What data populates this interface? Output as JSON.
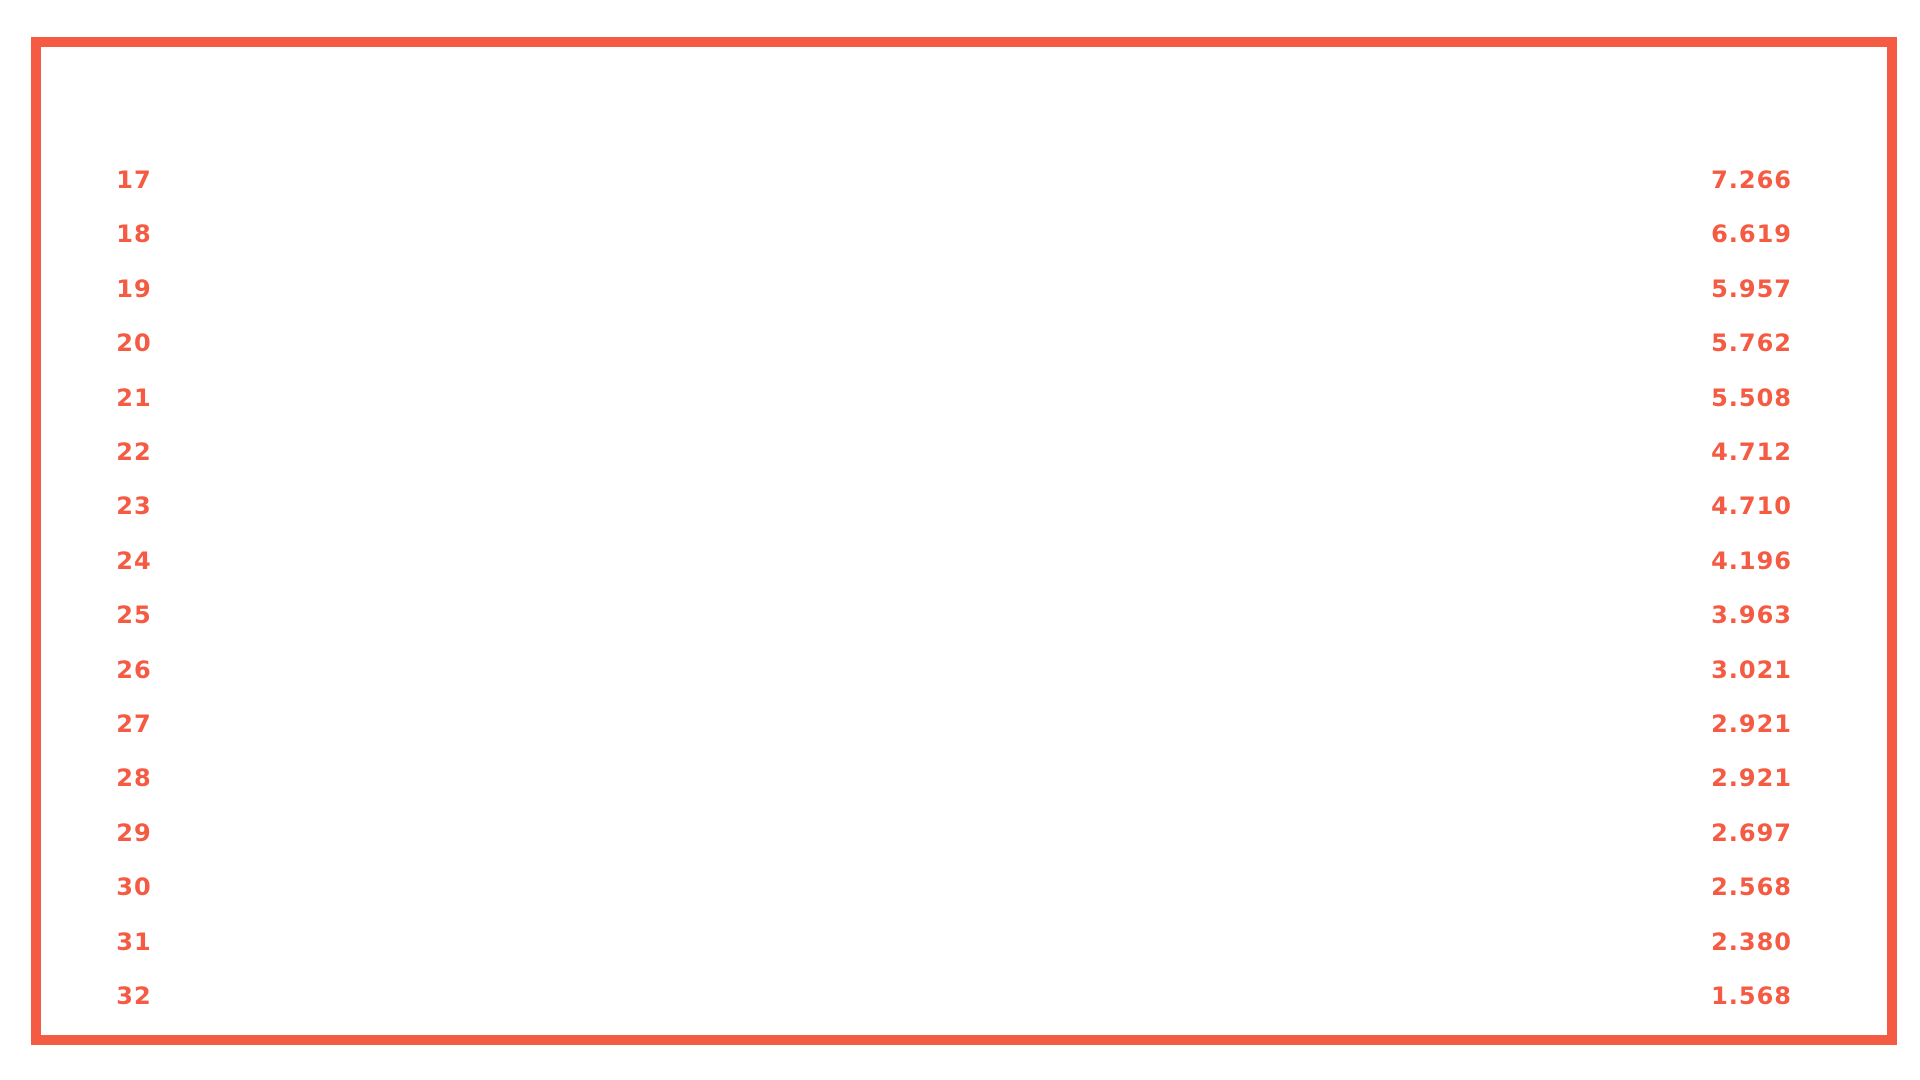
{
  "colors": {
    "accent": "#f55a42",
    "background": "#ffffff"
  },
  "chart_data": {
    "type": "table",
    "title": "",
    "columns": [
      "",
      ""
    ],
    "rows": [
      {
        "rank": "17",
        "value": "7.266"
      },
      {
        "rank": "18",
        "value": "6.619"
      },
      {
        "rank": "19",
        "value": "5.957"
      },
      {
        "rank": "20",
        "value": "5.762"
      },
      {
        "rank": "21",
        "value": "5.508"
      },
      {
        "rank": "22",
        "value": "4.712"
      },
      {
        "rank": "23",
        "value": "4.710"
      },
      {
        "rank": "24",
        "value": "4.196"
      },
      {
        "rank": "25",
        "value": "3.963"
      },
      {
        "rank": "26",
        "value": "3.021"
      },
      {
        "rank": "27",
        "value": "2.921"
      },
      {
        "rank": "28",
        "value": "2.921"
      },
      {
        "rank": "29",
        "value": "2.697"
      },
      {
        "rank": "30",
        "value": "2.568"
      },
      {
        "rank": "31",
        "value": "2.380"
      },
      {
        "rank": "32",
        "value": "1.568"
      }
    ]
  }
}
